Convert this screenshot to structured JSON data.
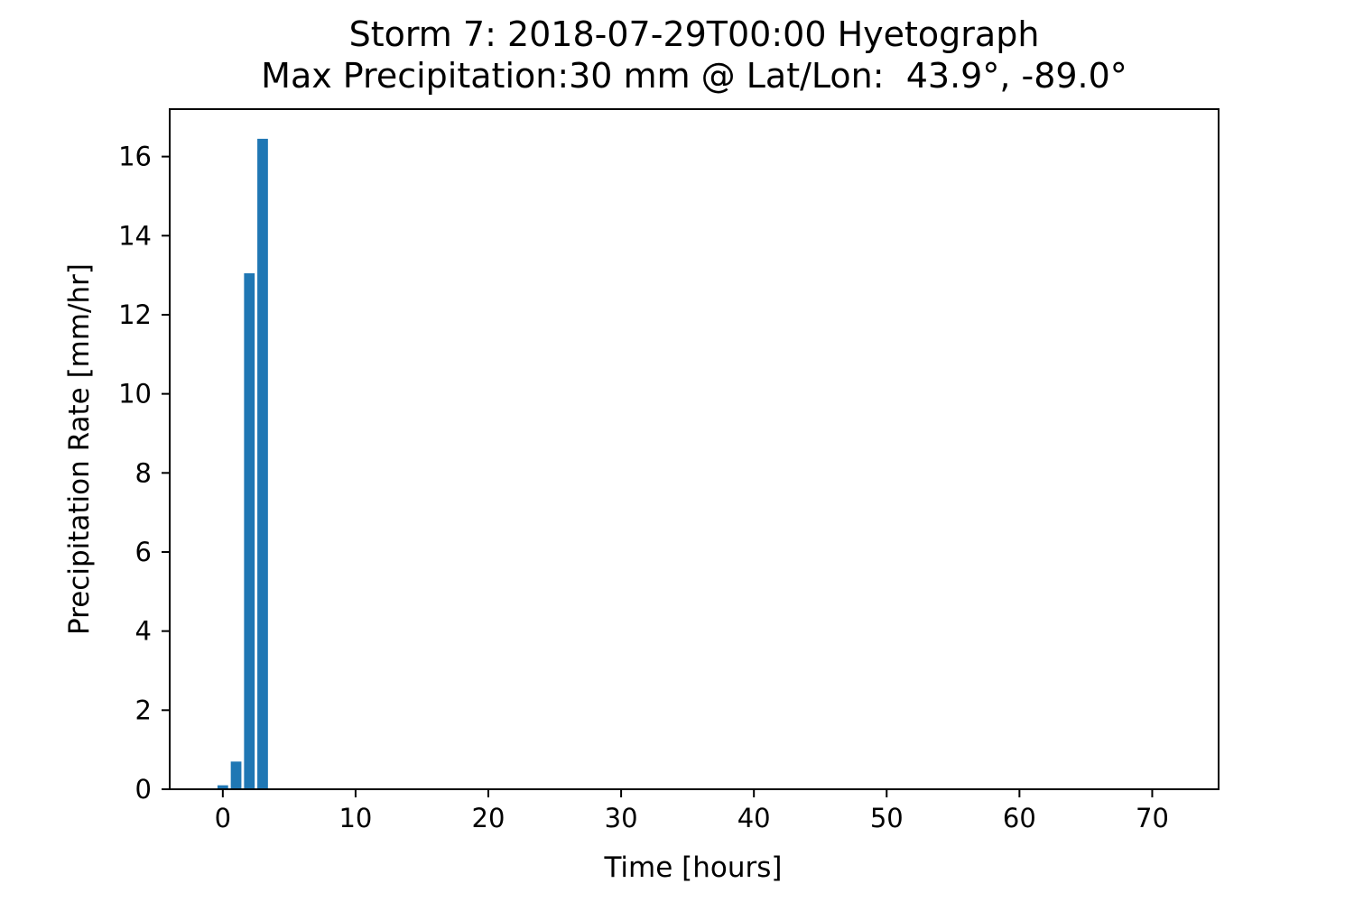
{
  "chart_data": {
    "type": "bar",
    "title": "Storm 7: 2018-07-29T00:00 Hyetograph",
    "subtitle": "Max Precipitation:30 mm @ Lat/Lon:  43.9°, -89.0°",
    "xlabel": "Time [hours]",
    "ylabel": "Precipitation Rate [mm/hr]",
    "xlim": [
      -4,
      75
    ],
    "ylim": [
      0,
      17.2
    ],
    "x_ticks": [
      0,
      10,
      20,
      30,
      40,
      50,
      60,
      70
    ],
    "y_ticks": [
      0,
      2,
      4,
      6,
      8,
      10,
      12,
      14,
      16
    ],
    "bar_width_units": 0.8,
    "x": [
      0,
      1,
      2,
      3
    ],
    "values": [
      0.1,
      0.7,
      13.05,
      16.45
    ],
    "bar_color": "#1f77b4",
    "grid": false,
    "legend": false
  }
}
